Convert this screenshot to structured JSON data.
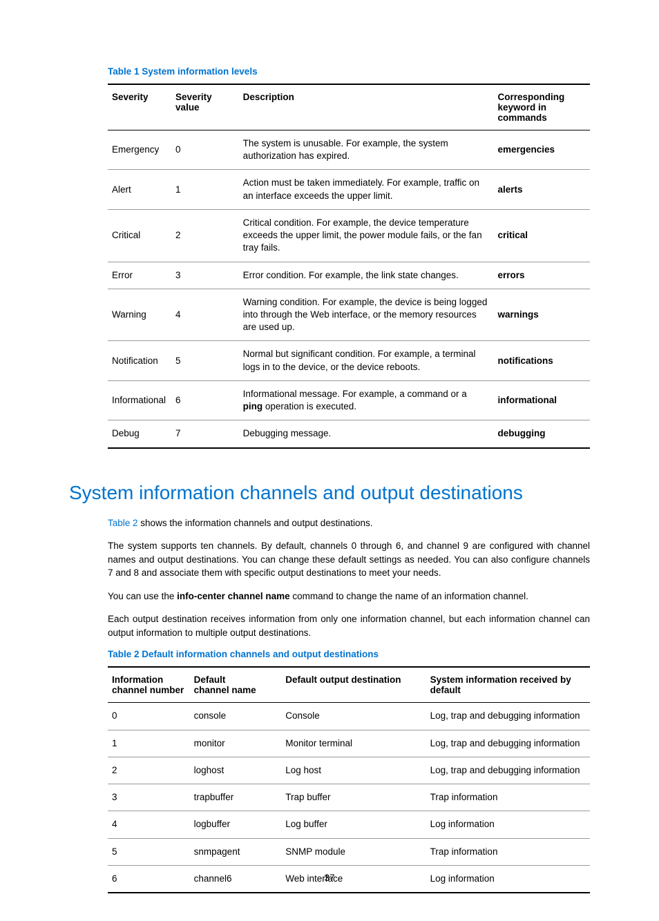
{
  "page_number": "37",
  "table1": {
    "title": "Table 1 System information levels",
    "columns": [
      "Severity",
      "Severity value",
      "Description",
      "Corresponding keyword in commands"
    ],
    "rows": [
      {
        "severity": "Emergency",
        "value": "0",
        "description": "The system is unusable. For example, the system authorization has expired.",
        "keyword": "emergencies"
      },
      {
        "severity": "Alert",
        "value": "1",
        "description": "Action must be taken immediately. For example, traffic on an interface exceeds the upper limit.",
        "keyword": "alerts"
      },
      {
        "severity": "Critical",
        "value": "2",
        "description": "Critical condition. For example, the device temperature exceeds the upper limit, the power module fails, or the fan tray fails.",
        "keyword": "critical"
      },
      {
        "severity": "Error",
        "value": "3",
        "description": "Error condition. For example, the link state changes.",
        "keyword": "errors"
      },
      {
        "severity": "Warning",
        "value": "4",
        "description": "Warning condition. For example, the device is being logged into through the Web interface, or the memory resources are used up.",
        "keyword": "warnings"
      },
      {
        "severity": "Notification",
        "value": "5",
        "description": "Normal but significant condition. For example, a terminal logs in to the device, or the device reboots.",
        "keyword": "notifications"
      },
      {
        "severity": "Informational",
        "value": "6",
        "description_prefix": "Informational message. For example, a command or a ",
        "description_bold": "ping",
        "description_suffix": " operation is executed.",
        "keyword": "informational"
      },
      {
        "severity": "Debug",
        "value": "7",
        "description": "Debugging message.",
        "keyword": "debugging"
      }
    ]
  },
  "section_heading": "System information channels and output destinations",
  "paragraphs": {
    "p1_link": "Table 2",
    "p1_rest": " shows the information channels and output destinations.",
    "p2": "The system supports ten channels. By default, channels 0 through 6, and channel 9 are configured with channel names and output destinations. You can change these default settings as needed. You can also configure channels 7 and 8 and associate them with specific output destinations to meet your needs.",
    "p3_pre": "You can use the ",
    "p3_bold": "info-center channel name",
    "p3_post": " command to change the name of an information channel.",
    "p4": "Each output destination receives information from only one information channel, but each information channel can output information to multiple output destinations."
  },
  "table2": {
    "title": "Table 2 Default information channels and output destinations",
    "columns": [
      "Information channel number",
      "Default channel name",
      "Default output destination",
      "System information received by default"
    ],
    "rows": [
      {
        "num": "0",
        "name": "console",
        "dest": "Console",
        "recv": "Log, trap and debugging information"
      },
      {
        "num": "1",
        "name": "monitor",
        "dest": "Monitor terminal",
        "recv": "Log, trap and debugging information"
      },
      {
        "num": "2",
        "name": "loghost",
        "dest": "Log host",
        "recv": "Log, trap and debugging information"
      },
      {
        "num": "3",
        "name": "trapbuffer",
        "dest": "Trap buffer",
        "recv": "Trap information"
      },
      {
        "num": "4",
        "name": "logbuffer",
        "dest": "Log buffer",
        "recv": "Log information"
      },
      {
        "num": "5",
        "name": "snmpagent",
        "dest": "SNMP module",
        "recv": "Trap information"
      },
      {
        "num": "6",
        "name": "channel6",
        "dest": "Web interface",
        "recv": "Log information"
      }
    ]
  }
}
